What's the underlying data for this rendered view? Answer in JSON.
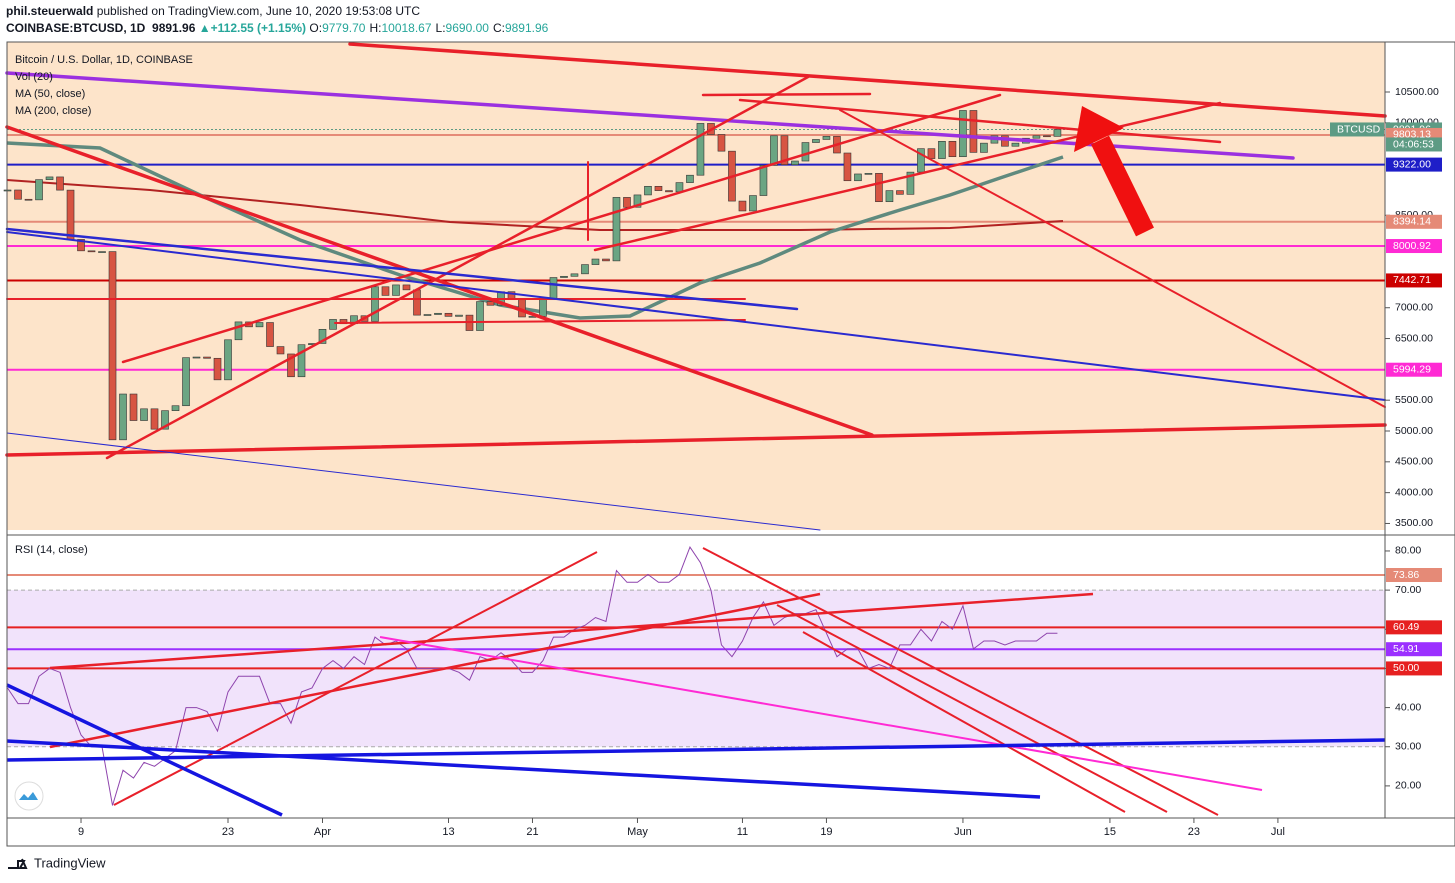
{
  "header": {
    "author": "phil.steuerwald",
    "published": "published on TradingView.com, June 10, 2020 19:53:08 UTC",
    "symbol": "COINBASE:BTCUSD, 1D",
    "last": "9891.96",
    "change": "+112.55 (+1.15%)",
    "ohlc": [
      {
        "key": "O:",
        "value": "9779.70"
      },
      {
        "key": "H:",
        "value": "10018.67"
      },
      {
        "key": "L:",
        "value": "9690.00"
      },
      {
        "key": "C:",
        "value": "9891.96"
      }
    ]
  },
  "chart_data": [
    {
      "type": "candlestick",
      "title": "Bitcoin / U.S. Dollar, 1D, COINBASE",
      "indicators": [
        "Vol (20)",
        "MA (50, close)",
        "MA (200, close)"
      ],
      "up_color": "#6ba583",
      "down_color": "#d75442",
      "x": [
        1,
        2,
        3,
        4,
        5,
        6,
        7,
        8,
        9,
        10,
        11,
        12,
        13,
        14,
        15,
        16,
        17,
        18,
        19,
        20,
        21,
        22,
        23,
        24,
        25,
        26,
        27,
        28,
        29,
        30,
        31,
        32,
        33,
        34,
        35,
        36,
        37,
        38,
        39,
        40,
        41,
        42,
        43,
        44,
        45,
        46,
        47,
        48,
        49,
        50,
        51,
        52,
        53,
        54,
        55,
        56,
        57,
        58,
        59,
        60,
        61,
        62,
        63,
        64,
        65,
        66,
        67,
        68,
        69,
        70,
        71,
        72,
        73,
        74,
        75,
        76,
        77,
        78,
        79,
        80,
        81,
        82,
        83,
        84,
        85,
        86,
        87,
        88,
        89,
        90,
        91,
        92,
        93,
        94,
        95,
        96,
        97,
        98,
        99,
        100,
        101
      ],
      "values": [
        8910,
        8760,
        8750,
        9078,
        9122,
        8908,
        8108,
        7923,
        7909,
        7911,
        4857,
        5600,
        5170,
        5360,
        5030,
        5330,
        5410,
        6190,
        6200,
        6180,
        5830,
        6480,
        6770,
        6690,
        6760,
        6370,
        6250,
        5880,
        6400,
        6420,
        6650,
        6810,
        6740,
        6870,
        6780,
        7340,
        7200,
        7370,
        7290,
        6880,
        6890,
        6910,
        6860,
        6880,
        6630,
        7100,
        7040,
        7260,
        7130,
        6850,
        6860,
        7130,
        7490,
        7510,
        7550,
        7700,
        7790,
        7760,
        8790,
        8630,
        8830,
        8970,
        8900,
        8880,
        9030,
        9150,
        9990,
        9810,
        9540,
        8730,
        8570,
        8820,
        9310,
        9790,
        9320,
        9380,
        9680,
        9730,
        9780,
        9510,
        9060,
        9170,
        9180,
        8720,
        8900,
        8840,
        9200,
        9580,
        9420,
        9700,
        9450,
        10200,
        9520,
        9670,
        9790,
        9620,
        9670,
        9750,
        9790,
        9780,
        9891.96
      ],
      "xlim": [
        0.95,
        132.2
      ],
      "xticks": [
        {
          "value": 8,
          "label": "9"
        },
        {
          "value": 22,
          "label": "23"
        },
        {
          "value": 31,
          "label": "Apr"
        },
        {
          "value": 43,
          "label": "13"
        },
        {
          "value": 51,
          "label": "21"
        },
        {
          "value": 61,
          "label": "May"
        },
        {
          "value": 71,
          "label": "11"
        },
        {
          "value": 79,
          "label": "19"
        },
        {
          "value": 92,
          "label": "Jun"
        },
        {
          "value": 106,
          "label": "15"
        },
        {
          "value": 114,
          "label": "23"
        },
        {
          "value": 122,
          "label": "Jul"
        }
      ],
      "ylim": [
        3394,
        11311
      ],
      "yticks": [
        {
          "value": 3500,
          "label": "3500.00"
        },
        {
          "value": 4000,
          "label": "4000.00"
        },
        {
          "value": 4500,
          "label": "4500.00"
        },
        {
          "value": 5000,
          "label": "5000.00"
        },
        {
          "value": 5500,
          "label": "5500.00"
        },
        {
          "value": 6500,
          "label": "6500.00"
        },
        {
          "value": 7000,
          "label": "7000.00"
        },
        {
          "value": 8500,
          "label": "8500.00"
        },
        {
          "value": 10000,
          "label": "10000.00"
        },
        {
          "value": 10500,
          "label": "10500.00"
        }
      ],
      "symbol_tag": "BTCUSD",
      "countdown": "04:06:53",
      "levels": [
        9891.96,
        9803.13,
        9322,
        8394.14,
        8000.92,
        7442.71,
        5994.29
      ],
      "level_labels": [
        "9891.96",
        "9803.13",
        "9322.00",
        "8394.14",
        "8000.92",
        "7442.71",
        "5994.29"
      ],
      "level_colors": [
        "#5d9b84",
        "#e58a77",
        "#1e1ec8",
        "#e58a77",
        "#ff2ad4",
        "#cc0000",
        "#ff2ad4"
      ]
    },
    {
      "type": "line",
      "title": "RSI (14, close)",
      "color": "#8e44ad",
      "x": [
        1,
        2,
        3,
        4,
        5,
        6,
        7,
        8,
        9,
        10,
        11,
        12,
        13,
        14,
        15,
        16,
        17,
        18,
        19,
        20,
        21,
        22,
        23,
        24,
        25,
        26,
        27,
        28,
        29,
        30,
        31,
        32,
        33,
        34,
        35,
        36,
        37,
        38,
        39,
        40,
        41,
        42,
        43,
        44,
        45,
        46,
        47,
        48,
        49,
        50,
        51,
        52,
        53,
        54,
        55,
        56,
        57,
        58,
        59,
        60,
        61,
        62,
        63,
        64,
        65,
        66,
        67,
        68,
        69,
        70,
        71,
        72,
        73,
        74,
        75,
        76,
        77,
        78,
        79,
        80,
        81,
        82,
        83,
        84,
        85,
        86,
        87,
        88,
        89,
        90,
        91,
        92,
        93,
        94,
        95,
        96,
        97,
        98,
        99,
        100,
        101
      ],
      "values": [
        45,
        41,
        41,
        48,
        50,
        49,
        40,
        33,
        30,
        30,
        15,
        24,
        22,
        26,
        25,
        27,
        29,
        40,
        40,
        39,
        34,
        44,
        48,
        48,
        48,
        41,
        41,
        36,
        44,
        45,
        50,
        52,
        50,
        53,
        51,
        58,
        56,
        57,
        55,
        50,
        50,
        50,
        50,
        49,
        47,
        53,
        52,
        54,
        52,
        49,
        49,
        52,
        58,
        58,
        60,
        61,
        63,
        62,
        75,
        72,
        72,
        74,
        72,
        72,
        74,
        81,
        77,
        70,
        56,
        53,
        57,
        63,
        67,
        61,
        63,
        64,
        64,
        65,
        59,
        53,
        55,
        55,
        50,
        51,
        50,
        56,
        56,
        60,
        57,
        62,
        60,
        66,
        55,
        57,
        57,
        56,
        57,
        57,
        57,
        59,
        59
      ],
      "xlim": [
        0.95,
        132.2
      ],
      "ylim": [
        11.8,
        82.8
      ],
      "yticks": [
        {
          "value": 20,
          "label": "20.00"
        },
        {
          "value": 30,
          "label": "30.00"
        },
        {
          "value": 40,
          "label": "40.00"
        },
        {
          "value": 50,
          "label": "50.00"
        },
        {
          "value": 60,
          "label": "60.00"
        },
        {
          "value": 70,
          "label": "70.00"
        },
        {
          "value": 80,
          "label": "80.00"
        }
      ],
      "band": [
        30,
        70
      ],
      "levels": [
        73.86,
        60.49,
        54.91,
        50
      ],
      "level_labels": [
        "73.86",
        "60.49",
        "54.91",
        "50.00"
      ],
      "level_colors": [
        "#e58a77",
        "#e62020",
        "#9b30ff",
        "#e62020"
      ]
    }
  ],
  "footer": "TradingView"
}
